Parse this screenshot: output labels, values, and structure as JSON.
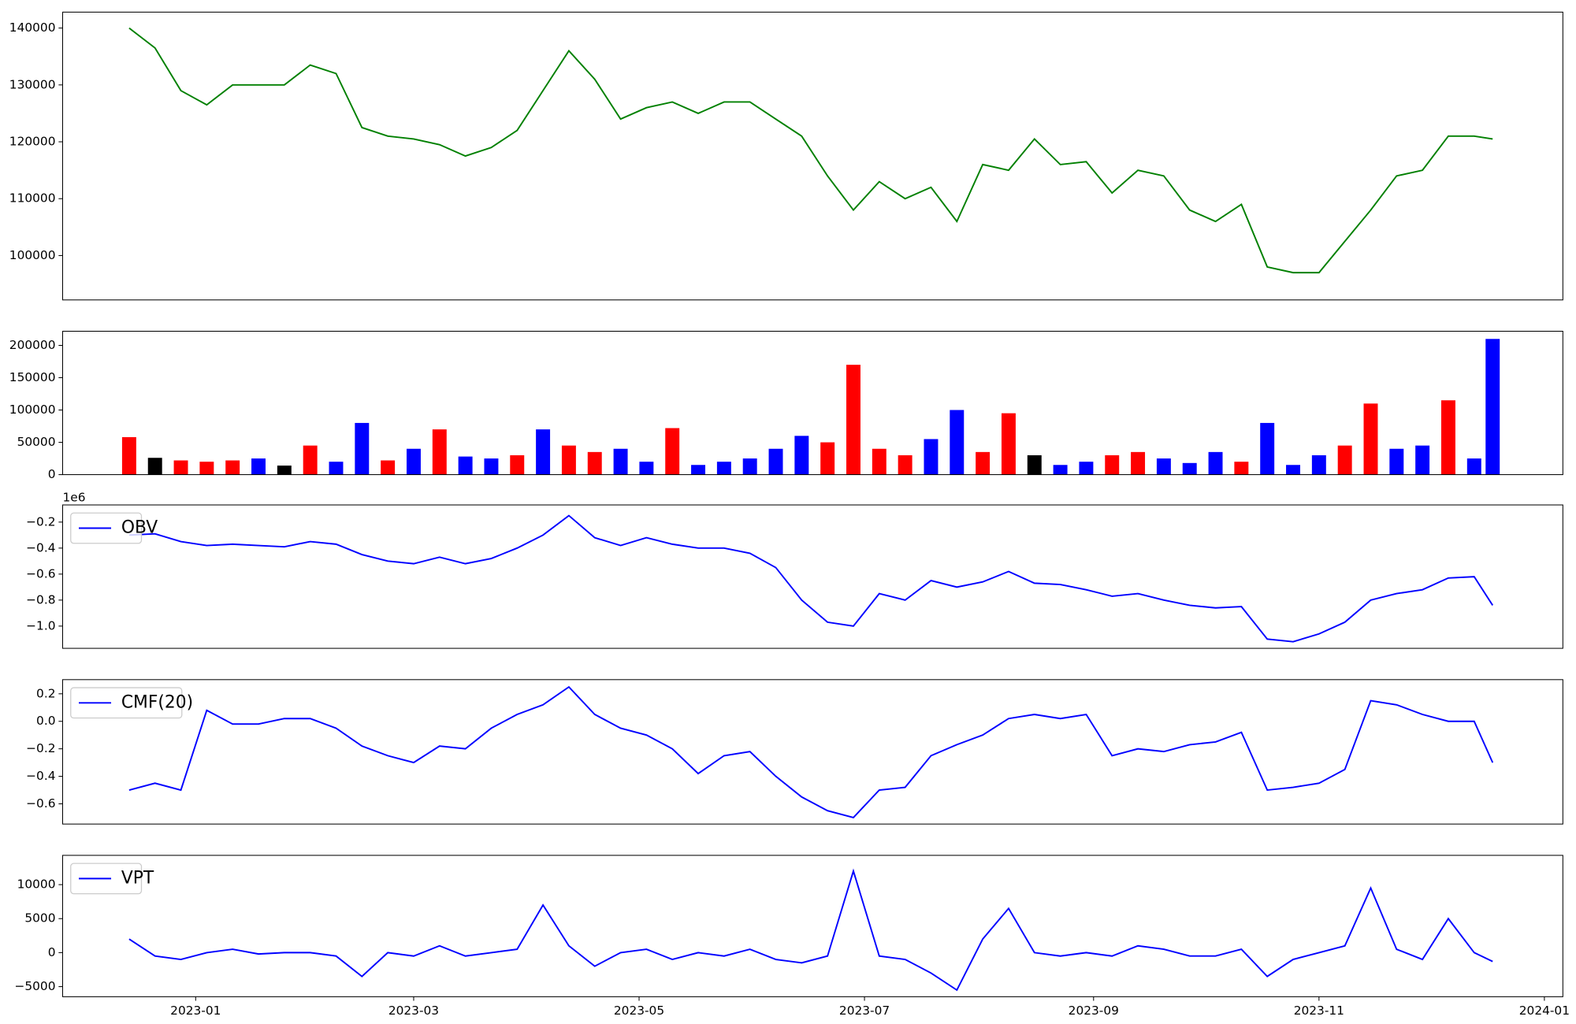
{
  "chart_data": [
    {
      "type": "line",
      "color": "#008000",
      "values": [
        140000,
        136500,
        129000,
        126500,
        130000,
        130000,
        130000,
        133500,
        132000,
        122500,
        121000,
        120500,
        119500,
        117500,
        119000,
        122000,
        129000,
        136000,
        131000,
        124000,
        126000,
        127000,
        125000,
        127000,
        127000,
        124000,
        121000,
        114000,
        108000,
        113000,
        110000,
        112000,
        106000,
        116000,
        115000,
        120500,
        116000,
        116500,
        111000,
        115000,
        114000,
        108000,
        106000,
        109000,
        98000,
        97000,
        97000,
        102500,
        108000,
        114000,
        115000,
        121000,
        121000,
        120500
      ],
      "ylim": [
        92200,
        142800
      ],
      "yticks": [
        100000,
        110000,
        120000,
        130000,
        140000
      ]
    },
    {
      "type": "bar",
      "values": [
        58000,
        26000,
        22000,
        20000,
        22000,
        25000,
        14000,
        45000,
        20000,
        80000,
        22000,
        40000,
        70000,
        28000,
        25000,
        30000,
        70000,
        45000,
        35000,
        40000,
        20000,
        72000,
        15000,
        20000,
        25000,
        40000,
        60000,
        50000,
        170000,
        40000,
        30000,
        55000,
        100000,
        35000,
        95000,
        30000,
        15000,
        20000,
        30000,
        35000,
        25000,
        18000,
        35000,
        20000,
        80000,
        15000,
        30000,
        45000,
        110000,
        40000,
        45000,
        115000,
        25000,
        210000
      ],
      "colors": [
        "red",
        "black",
        "red",
        "red",
        "red",
        "blue",
        "black",
        "red",
        "blue",
        "blue",
        "red",
        "blue",
        "red",
        "blue",
        "blue",
        "red",
        "blue",
        "red",
        "red",
        "blue",
        "blue",
        "red",
        "blue",
        "blue",
        "blue",
        "blue",
        "blue",
        "red",
        "red",
        "red",
        "red",
        "blue",
        "blue",
        "red",
        "red",
        "black",
        "blue",
        "blue",
        "red",
        "red",
        "blue",
        "blue",
        "blue",
        "red",
        "blue",
        "blue",
        "blue",
        "red",
        "red",
        "blue",
        "blue",
        "red",
        "blue",
        "blue"
      ],
      "ylim": [
        0,
        221900
      ],
      "yticks": [
        0,
        50000,
        100000,
        150000,
        200000
      ]
    },
    {
      "type": "line",
      "y_offset_text": "1e6",
      "legend": "upper left",
      "series": [
        {
          "name": "OBV",
          "color": "blue",
          "values": [
            -0.3,
            -0.29,
            -0.35,
            -0.38,
            -0.37,
            -0.38,
            -0.39,
            -0.35,
            -0.37,
            -0.45,
            -0.5,
            -0.52,
            -0.47,
            -0.52,
            -0.48,
            -0.4,
            -0.3,
            -0.15,
            -0.32,
            -0.38,
            -0.32,
            -0.37,
            -0.4,
            -0.4,
            -0.44,
            -0.55,
            -0.8,
            -0.97,
            -1.0,
            -0.75,
            -0.8,
            -0.65,
            -0.7,
            -0.66,
            -0.58,
            -0.67,
            -0.68,
            -0.72,
            -0.77,
            -0.75,
            -0.8,
            -0.84,
            -0.86,
            -0.85,
            -1.1,
            -1.12,
            -1.06,
            -0.97,
            -0.8,
            -0.75,
            -0.72,
            -0.63,
            -0.62,
            -0.84
          ]
        }
      ],
      "ylim": [
        -1.171,
        -0.068
      ],
      "yticks": [
        {
          "value": -1.0,
          "label": "−1.0"
        },
        {
          "value": -0.8,
          "label": "−0.8"
        },
        {
          "value": -0.6,
          "label": "−0.6"
        },
        {
          "value": -0.4,
          "label": "−0.4"
        },
        {
          "value": -0.2,
          "label": "−0.2"
        }
      ]
    },
    {
      "type": "line",
      "legend": "upper left",
      "series": [
        {
          "name": "CMF(20)",
          "color": "blue",
          "values": [
            -0.5,
            -0.45,
            -0.5,
            0.08,
            -0.02,
            -0.02,
            0.02,
            0.02,
            -0.05,
            -0.18,
            -0.25,
            -0.3,
            -0.18,
            -0.2,
            -0.05,
            0.05,
            0.12,
            0.25,
            0.05,
            -0.05,
            -0.1,
            -0.2,
            -0.38,
            -0.25,
            -0.22,
            -0.4,
            -0.55,
            -0.65,
            -0.7,
            -0.5,
            -0.48,
            -0.25,
            -0.17,
            -0.1,
            0.02,
            0.05,
            0.02,
            0.05,
            -0.25,
            -0.2,
            -0.22,
            -0.17,
            -0.15,
            -0.08,
            -0.5,
            -0.48,
            -0.45,
            -0.35,
            0.15,
            0.12,
            0.05,
            0.0,
            0.0,
            -0.3
          ]
        }
      ],
      "ylim": [
        -0.747,
        0.303
      ],
      "yticks": [
        {
          "value": -0.6,
          "label": "−0.6"
        },
        {
          "value": -0.4,
          "label": "−0.4"
        },
        {
          "value": -0.2,
          "label": "−0.2"
        },
        {
          "value": 0,
          "label": "0.0"
        },
        0.2
      ]
    },
    {
      "type": "line",
      "legend": "upper left",
      "x": [
        "2022-12-14",
        "2022-12-21",
        "2022-12-28",
        "2023-01-04",
        "2023-01-11",
        "2023-01-18",
        "2023-01-25",
        "2023-02-01",
        "2023-02-08",
        "2023-02-15",
        "2023-02-22",
        "2023-03-01",
        "2023-03-08",
        "2023-03-15",
        "2023-03-22",
        "2023-03-29",
        "2023-04-05",
        "2023-04-12",
        "2023-04-19",
        "2023-04-26",
        "2023-05-03",
        "2023-05-10",
        "2023-05-17",
        "2023-05-24",
        "2023-05-31",
        "2023-06-07",
        "2023-06-14",
        "2023-06-21",
        "2023-06-28",
        "2023-07-05",
        "2023-07-12",
        "2023-07-19",
        "2023-07-26",
        "2023-08-02",
        "2023-08-09",
        "2023-08-16",
        "2023-08-23",
        "2023-08-30",
        "2023-09-06",
        "2023-09-13",
        "2023-09-20",
        "2023-09-27",
        "2023-10-04",
        "2023-10-11",
        "2023-10-18",
        "2023-10-25",
        "2023-11-01",
        "2023-11-08",
        "2023-11-15",
        "2023-11-22",
        "2023-11-29",
        "2023-12-06",
        "2023-12-13",
        "2023-12-18"
      ],
      "xlim": [
        "2022-11-26",
        "2024-01-06"
      ],
      "xticks": [
        {
          "value": "2023-01-01",
          "label": "2023-01"
        },
        {
          "value": "2023-03-01",
          "label": "2023-03"
        },
        {
          "value": "2023-05-01",
          "label": "2023-05"
        },
        {
          "value": "2023-07-01",
          "label": "2023-07"
        },
        {
          "value": "2023-09-01",
          "label": "2023-09"
        },
        {
          "value": "2023-11-01",
          "label": "2023-11"
        },
        {
          "value": "2024-01-01",
          "label": "2024-01"
        }
      ],
      "series": [
        {
          "name": "VPT",
          "color": "blue",
          "values": [
            2000,
            -500,
            -1000,
            0,
            500,
            -200,
            0,
            0,
            -500,
            -3500,
            0,
            -500,
            1000,
            -500,
            0,
            500,
            7000,
            1000,
            -2000,
            0,
            500,
            -1000,
            0,
            -500,
            500,
            -1000,
            -1500,
            -500,
            12000,
            -500,
            -1000,
            -3000,
            -5500,
            2000,
            6500,
            0,
            -500,
            0,
            -500,
            1000,
            500,
            -500,
            -500,
            500,
            -3500,
            -1000,
            0,
            1000,
            9500,
            500,
            -1000,
            5000,
            0,
            -1300
          ]
        }
      ],
      "ylim": [
        -6485,
        14307
      ],
      "yticks": [
        {
          "value": -5000,
          "label": "−5000"
        },
        0,
        5000,
        10000
      ]
    }
  ]
}
